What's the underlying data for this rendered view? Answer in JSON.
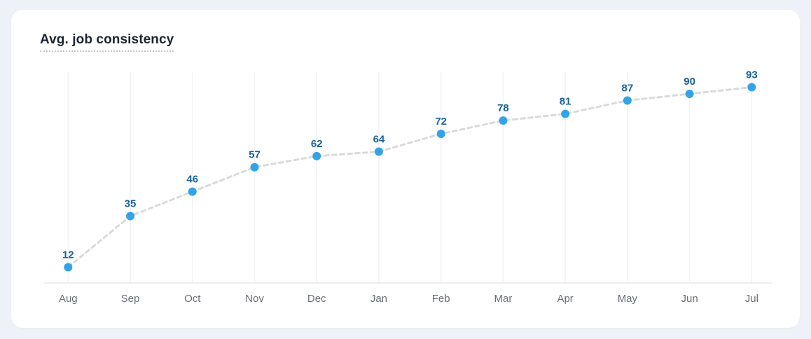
{
  "card": {
    "title": "Avg. job consistency"
  },
  "chart_data": {
    "type": "line",
    "title": "Avg. job consistency",
    "categories": [
      "Aug",
      "Sep",
      "Oct",
      "Nov",
      "Dec",
      "Jan",
      "Feb",
      "Mar",
      "Apr",
      "May",
      "Jun",
      "Jul"
    ],
    "values": [
      12,
      35,
      46,
      57,
      62,
      64,
      72,
      78,
      81,
      87,
      90,
      93
    ],
    "xlabel": "",
    "ylabel": "",
    "ylim": [
      0,
      100
    ],
    "grid": "vertical-only",
    "legend": "none",
    "line_style": "dashed",
    "markers": "filled-circle",
    "point_labels_shown": true,
    "y_axis_labels_shown": false
  },
  "colors": {
    "page_bg": "#eef2f8",
    "card_bg": "#ffffff",
    "title_text": "#1f2430",
    "title_underline": "#c4c8cd",
    "point_fill": "#33a3e8",
    "point_label": "#1a6298",
    "dashed_line": "#d8dadc",
    "gridline": "#f0f2f5",
    "axis_line": "#e4e7eb",
    "month_label": "#686e77"
  }
}
